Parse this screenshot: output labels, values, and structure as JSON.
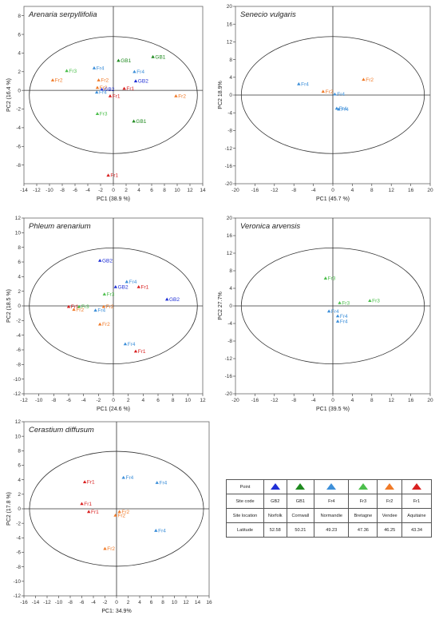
{
  "colors": {
    "GB2": "#1f2fd6",
    "GB1": "#1f8a1f",
    "Fr4": "#3d8fd9",
    "Fr3": "#4cbf4c",
    "Fr2": "#f07a28",
    "Fr1": "#d92020",
    "axis": "#333333",
    "box": "#666666"
  },
  "chart_data": [
    {
      "id": "arenaria",
      "type": "scatter",
      "title": "Arenaria serpyllifolia",
      "xlabel": "PC1 (38.9 %)",
      "ylabel": "PC2 (16.4 %)",
      "xlim": [
        -14,
        14
      ],
      "ylim": [
        -10,
        9
      ],
      "xticks": [
        -14,
        -12,
        -10,
        -8,
        -6,
        -4,
        -2,
        0,
        2,
        4,
        6,
        8,
        10,
        12,
        14
      ],
      "yticks": [
        -8,
        -6,
        -4,
        -2,
        0,
        2,
        4,
        6,
        8
      ],
      "points": [
        {
          "label": "GB1",
          "x": 6.2,
          "y": 3.6
        },
        {
          "label": "GB1",
          "x": 0.8,
          "y": 3.2
        },
        {
          "label": "Fr4",
          "x": 3.3,
          "y": 2.0
        },
        {
          "label": "GB2",
          "x": 3.5,
          "y": 1.0
        },
        {
          "label": "Fr4",
          "x": -3.0,
          "y": 2.4
        },
        {
          "label": "Fr3",
          "x": -7.3,
          "y": 2.1
        },
        {
          "label": "Fr2",
          "x": -9.5,
          "y": 1.1
        },
        {
          "label": "Fr2",
          "x": -2.3,
          "y": 1.1
        },
        {
          "label": "Fr2",
          "x": -2.5,
          "y": 0.3
        },
        {
          "label": "GB2",
          "x": -1.8,
          "y": 0.1
        },
        {
          "label": "Fr4",
          "x": -2.6,
          "y": -0.2
        },
        {
          "label": "Fr1",
          "x": 1.7,
          "y": 0.2
        },
        {
          "label": "Fr1",
          "x": -0.5,
          "y": -0.6
        },
        {
          "label": "Fr2",
          "x": 9.8,
          "y": -0.6
        },
        {
          "label": "Fr3",
          "x": -2.5,
          "y": -2.5
        },
        {
          "label": "GB1",
          "x": 3.2,
          "y": -3.3
        },
        {
          "label": "Fr1",
          "x": -0.8,
          "y": -9.1
        }
      ]
    },
    {
      "id": "senecio",
      "type": "scatter",
      "title": "Senecio vulgaris",
      "xlabel": "PC1 (45.7 %)",
      "ylabel": "PC2  18.9%",
      "xlim": [
        -20,
        20
      ],
      "ylim": [
        -20,
        20
      ],
      "xticks": [
        -20,
        -16,
        -12,
        -8,
        -4,
        0,
        4,
        8,
        12,
        16,
        20
      ],
      "yticks": [
        -20,
        -16,
        -12,
        -8,
        -4,
        0,
        4,
        8,
        12,
        16,
        20
      ],
      "points": [
        {
          "label": "Fr2",
          "x": 6.3,
          "y": 3.5
        },
        {
          "label": "Fr4",
          "x": -7.0,
          "y": 2.5
        },
        {
          "label": "Fr2",
          "x": -2.0,
          "y": 0.8
        },
        {
          "label": "Fr4",
          "x": 0.4,
          "y": 0.2
        },
        {
          "label": "Fr4",
          "x": 0.8,
          "y": -3.0
        },
        {
          "label": "Fr4",
          "x": 1.2,
          "y": -3.2
        }
      ]
    },
    {
      "id": "phleum",
      "type": "scatter",
      "title": "Phleum arenarium",
      "xlabel": "PC1 (24.6 %)",
      "ylabel": "PC2 (18.5 %)",
      "xlim": [
        -12,
        12
      ],
      "ylim": [
        -12,
        12
      ],
      "xticks": [
        -12,
        -10,
        -8,
        -6,
        -4,
        -2,
        0,
        2,
        4,
        6,
        8,
        10,
        12
      ],
      "yticks": [
        -12,
        -10,
        -8,
        -6,
        -4,
        -2,
        0,
        2,
        4,
        6,
        8,
        10,
        12
      ],
      "points": [
        {
          "label": "GB2",
          "x": -1.8,
          "y": 6.2
        },
        {
          "label": "Fr4",
          "x": 1.8,
          "y": 3.3
        },
        {
          "label": "GB2",
          "x": 0.3,
          "y": 2.6
        },
        {
          "label": "Fr1",
          "x": 3.4,
          "y": 2.6
        },
        {
          "label": "Fr3",
          "x": -1.2,
          "y": 1.6
        },
        {
          "label": "GB2",
          "x": 7.2,
          "y": 0.9
        },
        {
          "label": "Fr1",
          "x": -6.0,
          "y": -0.1
        },
        {
          "label": "Fr3",
          "x": -4.6,
          "y": -0.1
        },
        {
          "label": "Fr2",
          "x": -5.3,
          "y": -0.5
        },
        {
          "label": "Fr2",
          "x": -1.3,
          "y": -0.1
        },
        {
          "label": "Fr4",
          "x": -2.4,
          "y": -0.6
        },
        {
          "label": "Fr2",
          "x": -1.8,
          "y": -2.5
        },
        {
          "label": "Fr4",
          "x": 1.6,
          "y": -5.2
        },
        {
          "label": "Fr1",
          "x": 3.0,
          "y": -6.2
        }
      ]
    },
    {
      "id": "veronica",
      "type": "scatter",
      "title": "Veronica arvensis",
      "xlabel": "PC1 (39.5 %)",
      "ylabel": "PC2  27.7%",
      "xlim": [
        -20,
        20
      ],
      "ylim": [
        -20,
        20
      ],
      "xticks": [
        -20,
        -16,
        -12,
        -8,
        -4,
        0,
        4,
        8,
        12,
        16,
        20
      ],
      "yticks": [
        -20,
        -16,
        -12,
        -8,
        -4,
        0,
        4,
        8,
        12,
        16,
        20
      ],
      "points": [
        {
          "label": "Fr3",
          "x": -1.5,
          "y": 6.3
        },
        {
          "label": "Fr3",
          "x": 7.6,
          "y": 1.2
        },
        {
          "label": "Fr3",
          "x": 1.4,
          "y": 0.7
        },
        {
          "label": "Fr4",
          "x": -0.8,
          "y": -1.2
        },
        {
          "label": "Fr4",
          "x": 1.0,
          "y": -2.3
        },
        {
          "label": "Fr4",
          "x": 1.0,
          "y": -3.5
        }
      ]
    },
    {
      "id": "cerastium",
      "type": "scatter",
      "title": "Cerastium diffusum",
      "xlabel": "PC1: 34.9%",
      "ylabel": "PC2  (17.8 %)",
      "xlim": [
        -16,
        16
      ],
      "ylim": [
        -12,
        12
      ],
      "xticks": [
        -16,
        -14,
        -12,
        -10,
        -8,
        -6,
        -4,
        -2,
        0,
        2,
        4,
        6,
        8,
        10,
        12,
        14,
        16
      ],
      "yticks": [
        -12,
        -10,
        -8,
        -6,
        -4,
        -2,
        0,
        2,
        4,
        6,
        8,
        10,
        12
      ],
      "points": [
        {
          "label": "Fr1",
          "x": -5.5,
          "y": 3.7
        },
        {
          "label": "Fr4",
          "x": 1.2,
          "y": 4.3
        },
        {
          "label": "Fr4",
          "x": 7.0,
          "y": 3.6
        },
        {
          "label": "Fr1",
          "x": -6.0,
          "y": 0.7
        },
        {
          "label": "Fr1",
          "x": -4.8,
          "y": -0.4
        },
        {
          "label": "Fr2",
          "x": 0.5,
          "y": -0.4
        },
        {
          "label": "Fr2",
          "x": -0.2,
          "y": -0.9
        },
        {
          "label": "Fr4",
          "x": 6.8,
          "y": -3.0
        },
        {
          "label": "Fr2",
          "x": -2.0,
          "y": -5.5
        }
      ]
    }
  ],
  "legend": {
    "header": "Point",
    "rows": [
      {
        "label": "Site code",
        "values": [
          "GB2",
          "GB1",
          "Fr4",
          "Fr3",
          "Fr2",
          "Fr1"
        ]
      },
      {
        "label": "Site location",
        "values": [
          "Norfolk",
          "Cornwall",
          "Normandie",
          "Bretagne",
          "Vendee",
          "Aquitaine"
        ]
      },
      {
        "label": "Latitude",
        "values": [
          "52.58",
          "50.21",
          "49.23",
          "47.36",
          "46.25",
          "43.34"
        ]
      }
    ]
  }
}
